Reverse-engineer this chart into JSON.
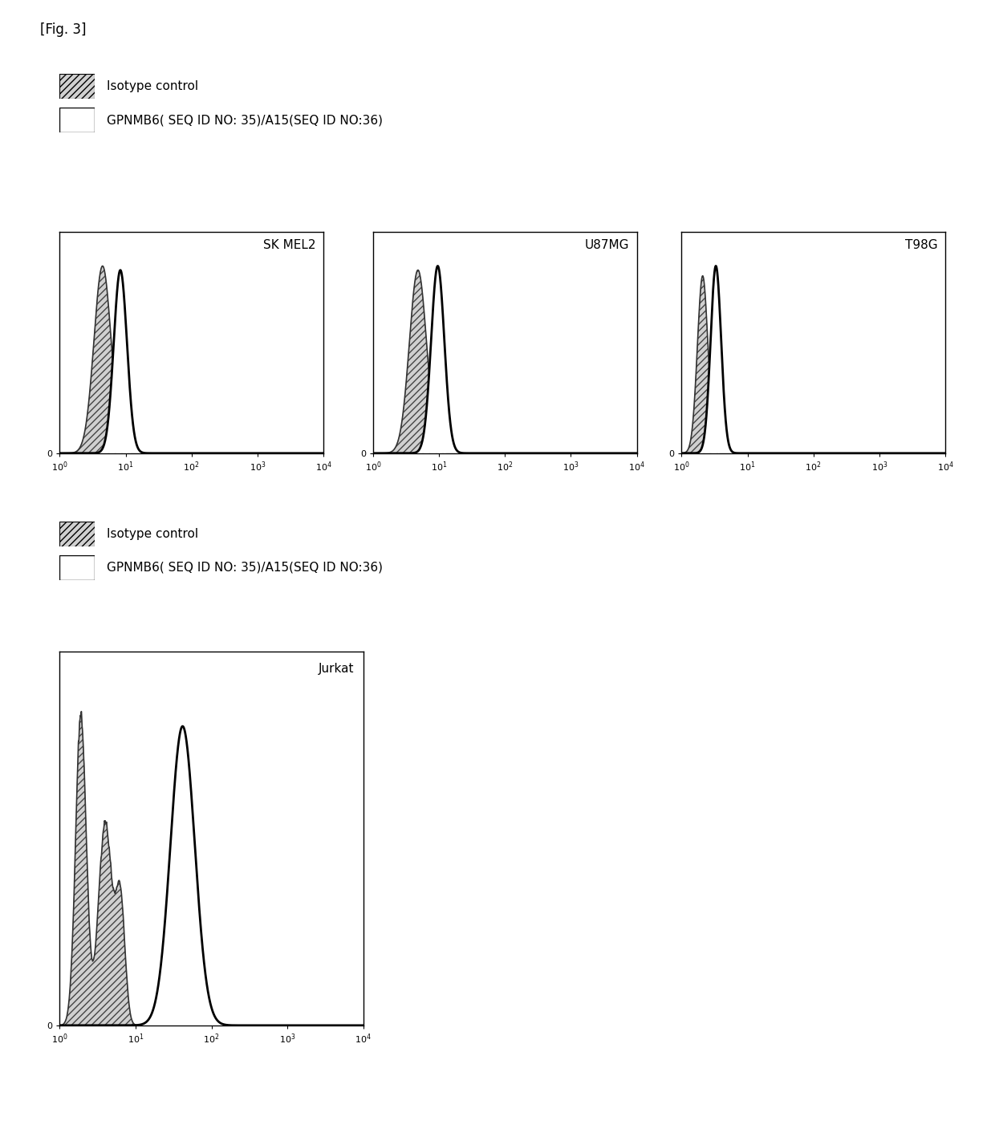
{
  "figure_label": "[Fig. 3]",
  "legend_label_1": "Isotype control",
  "legend_label_2": "GPNMB6( SEQ ID NO: 35)/A15(SEQ ID NO:36)",
  "panels_row1": [
    "SK MEL2",
    "U87MG",
    "T98G"
  ],
  "panels_row2": [
    "Jurkat"
  ],
  "panel_params_row1": [
    {
      "iso_mu": 0.65,
      "iso_sig": 0.13,
      "ab_mu": 0.92,
      "ab_sig": 0.1,
      "iso_peak": 0.9,
      "ab_peak": 0.88
    },
    {
      "iso_mu": 0.68,
      "iso_sig": 0.13,
      "ab_mu": 0.98,
      "ab_sig": 0.1,
      "iso_peak": 0.9,
      "ab_peak": 0.92
    },
    {
      "iso_mu": 0.32,
      "iso_sig": 0.08,
      "ab_mu": 0.52,
      "ab_sig": 0.08,
      "iso_peak": 0.9,
      "ab_peak": 0.95
    }
  ],
  "jurkat_iso_peaks": [
    {
      "mu": 0.28,
      "sig": 0.07,
      "amp": 0.95
    },
    {
      "mu": 0.6,
      "sig": 0.09,
      "amp": 0.62
    },
    {
      "mu": 0.8,
      "sig": 0.06,
      "amp": 0.38
    }
  ],
  "jurkat_ab_mu": 1.62,
  "jurkat_ab_sig": 0.16,
  "jurkat_ab_peak": 0.92,
  "hatch_facecolor": "#d0d0d0",
  "hatch_pattern": "////",
  "iso_line_color": "#333333",
  "ab_line_color": "#000000",
  "fontsize_title": 11,
  "fontsize_tick": 8,
  "fontsize_legend": 11,
  "fontsize_figlabel": 12
}
